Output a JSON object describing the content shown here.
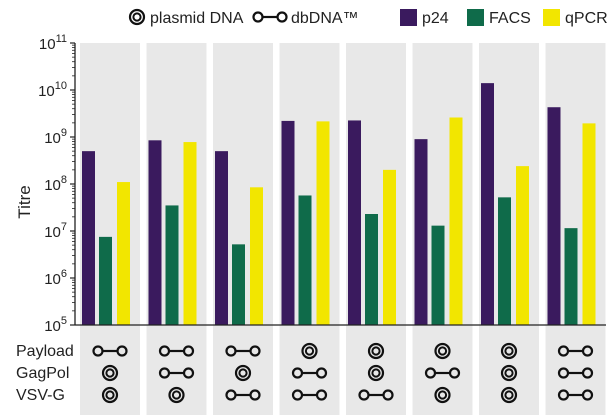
{
  "chart_data": {
    "type": "bar",
    "scale": "log",
    "ylabel": "Titre",
    "ylim": [
      100000,
      100000000000
    ],
    "y_ticks": [
      {
        "base": "10",
        "exp": "5",
        "value": 100000
      },
      {
        "base": "10",
        "exp": "6",
        "value": 1000000
      },
      {
        "base": "10",
        "exp": "7",
        "value": 10000000
      },
      {
        "base": "10",
        "exp": "8",
        "value": 100000000
      },
      {
        "base": "10",
        "exp": "9",
        "value": 1000000000
      },
      {
        "base": "10",
        "exp": "10",
        "value": 10000000000
      },
      {
        "base": "10",
        "exp": "11",
        "value": 100000000000
      }
    ],
    "grid": false,
    "legend_position": "top",
    "construct_legend": [
      {
        "name": "plasmid DNA",
        "icon": "plasmid-circle-icon"
      },
      {
        "name": "dbDNA™",
        "icon": "dbdna-dumbbell-icon"
      }
    ],
    "series": [
      {
        "name": "p24",
        "color": "#3a1a5e",
        "values": [
          500000000,
          850000000,
          500000000,
          2200000000,
          2250000000,
          900000000,
          14000000000,
          4300000000
        ]
      },
      {
        "name": "FACS",
        "color": "#0f6b4a",
        "values": [
          7500000,
          35000000,
          5200000,
          57000000,
          23000000,
          13000000,
          52000000,
          11500000
        ]
      },
      {
        "name": "qPCR",
        "color": "#f2e600",
        "values": [
          110000000,
          780000000,
          85000000,
          2150000000,
          200000000,
          2600000000,
          240000000,
          1950000000
        ]
      }
    ],
    "row_labels": [
      "Payload",
      "GagPol",
      "VSV-G"
    ],
    "constructs": [
      [
        "dbdna",
        "plasmid",
        "plasmid"
      ],
      [
        "dbdna",
        "dbdna",
        "plasmid"
      ],
      [
        "dbdna",
        "plasmid",
        "dbdna"
      ],
      [
        "plasmid",
        "dbdna",
        "dbdna"
      ],
      [
        "plasmid",
        "plasmid",
        "dbdna"
      ],
      [
        "plasmid",
        "dbdna",
        "plasmid"
      ],
      [
        "plasmid",
        "plasmid",
        "plasmid"
      ],
      [
        "dbdna",
        "dbdna",
        "dbdna"
      ]
    ],
    "colors": {
      "panel": "#e8e8e8",
      "axis": "#222222",
      "icon": "#111111"
    }
  }
}
